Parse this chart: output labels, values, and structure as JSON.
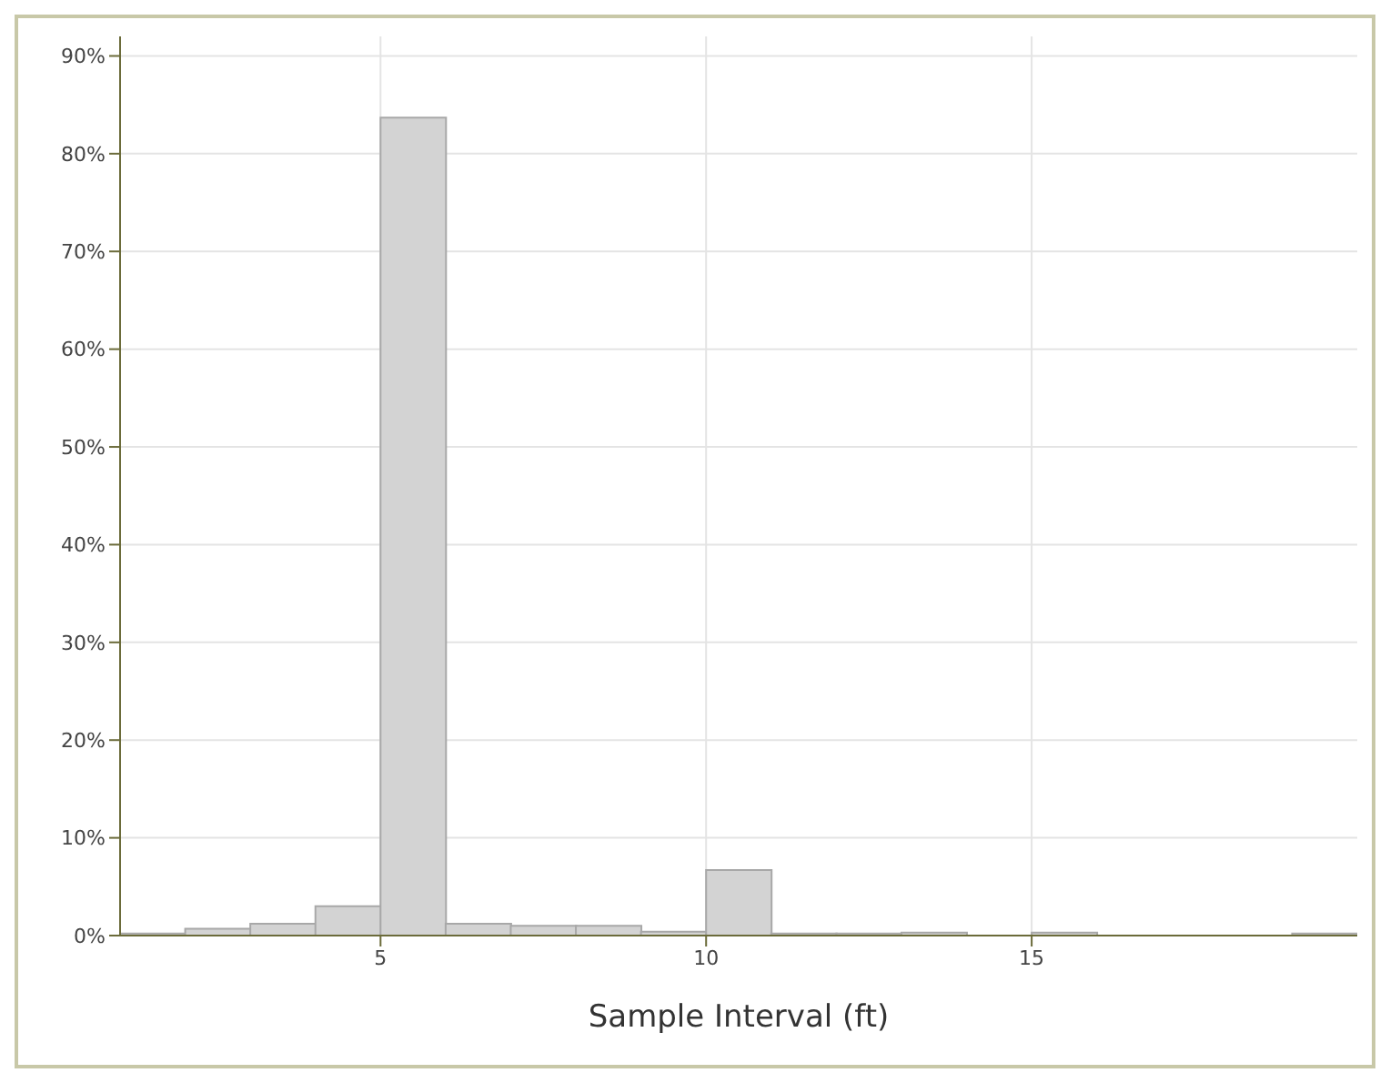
{
  "chart_data": {
    "type": "histogram",
    "xlabel": "Sample Interval (ft)",
    "bins": [
      1,
      2,
      3,
      4,
      5,
      6,
      7,
      8,
      9,
      10,
      11,
      12,
      13,
      14,
      15,
      16,
      17,
      18,
      19,
      20
    ],
    "values": [
      0.2,
      0.7,
      1.2,
      3.0,
      83.7,
      1.2,
      1.0,
      1.0,
      0.4,
      6.7,
      0.2,
      0.2,
      0.3,
      null,
      0.3,
      null,
      null,
      null,
      0.2
    ],
    "color": "#d3d3d3",
    "xlim": [
      1,
      20
    ],
    "xticks": [
      5,
      10,
      15
    ],
    "ylim": [
      0,
      92
    ],
    "yticks": [
      {
        "value": 0,
        "label": "0%"
      },
      {
        "value": 10,
        "label": "10%"
      },
      {
        "value": 20,
        "label": "20%"
      },
      {
        "value": 30,
        "label": "30%"
      },
      {
        "value": 40,
        "label": "40%"
      },
      {
        "value": 50,
        "label": "50%"
      },
      {
        "value": 60,
        "label": "60%"
      },
      {
        "value": 70,
        "label": "70%"
      },
      {
        "value": 80,
        "label": "80%"
      },
      {
        "value": 90,
        "label": "90%"
      }
    ],
    "grid": true
  }
}
